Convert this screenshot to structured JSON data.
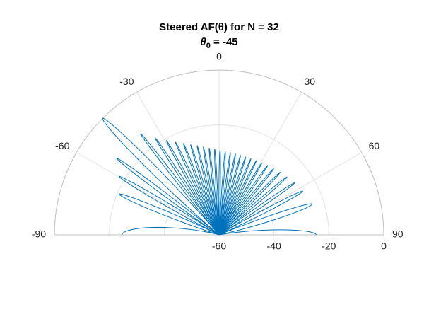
{
  "chart_data": {
    "type": "polar-line",
    "title": "Steered AF(θ) for N = 32",
    "subtitle": {
      "symbol": "θ",
      "subscript": "0",
      "text": " = -45"
    },
    "x": [
      -90,
      -73.16,
      -67.8,
      -63.46,
      -59.71,
      -56.32,
      -53.22,
      -50.31,
      -45,
      -40.14,
      -37.84,
      -35.6,
      -33.43,
      -31.31,
      -29.23,
      -27.2,
      -25.21,
      -23.24,
      -21.31,
      -19.4,
      -17.51,
      -15.64,
      -13.79,
      -11.95,
      -10.13,
      -8.31,
      -6.51,
      -4.71,
      -2.92,
      -1.12,
      0.66,
      2.46,
      4.25,
      6.05,
      7.85,
      9.67,
      11.48,
      13.32,
      15.17,
      17.03,
      18.91,
      20.82,
      22.75,
      24.7,
      26.69,
      28.71,
      30.77,
      32.88,
      35.04,
      37.26,
      39.54,
      41.9,
      44.36,
      46.92,
      49.61,
      52.46,
      55.5,
      58.82,
      62.45,
      66.62,
      71.66,
      78.64,
      90
    ],
    "series": [
      {
        "color": "#0072bd",
        "values": [
          -24.6,
          -60,
          -20.65,
          -60,
          -17.8,
          -60,
          -13.4,
          -60,
          0,
          -60,
          -13.4,
          -60,
          -17.8,
          -60,
          -20.65,
          -60,
          -22.7,
          -60,
          -24.3,
          -60,
          -25.6,
          -60,
          -26.6,
          -60,
          -27.5,
          -60,
          -28.2,
          -60,
          -28.8,
          -60,
          -29.2,
          -60,
          -29.6,
          -60,
          -29.8,
          -60,
          -30,
          -60,
          -30.1,
          -60,
          -30.1,
          -60,
          -30,
          -60,
          -29.8,
          -60,
          -29.6,
          -60,
          -29.2,
          -60,
          -28.8,
          -60,
          -28.2,
          -60,
          -27.5,
          -60,
          -26.6,
          -60,
          -25.6,
          -60,
          -24.3,
          -60,
          -24.6
        ]
      }
    ],
    "xlim": [
      -90,
      90
    ],
    "xticks": [
      -90,
      -60,
      -30,
      0,
      30,
      60,
      90
    ],
    "ylim": [
      -60,
      0
    ],
    "yticks": [
      -60,
      -40,
      -20,
      0
    ],
    "grid": true
  }
}
